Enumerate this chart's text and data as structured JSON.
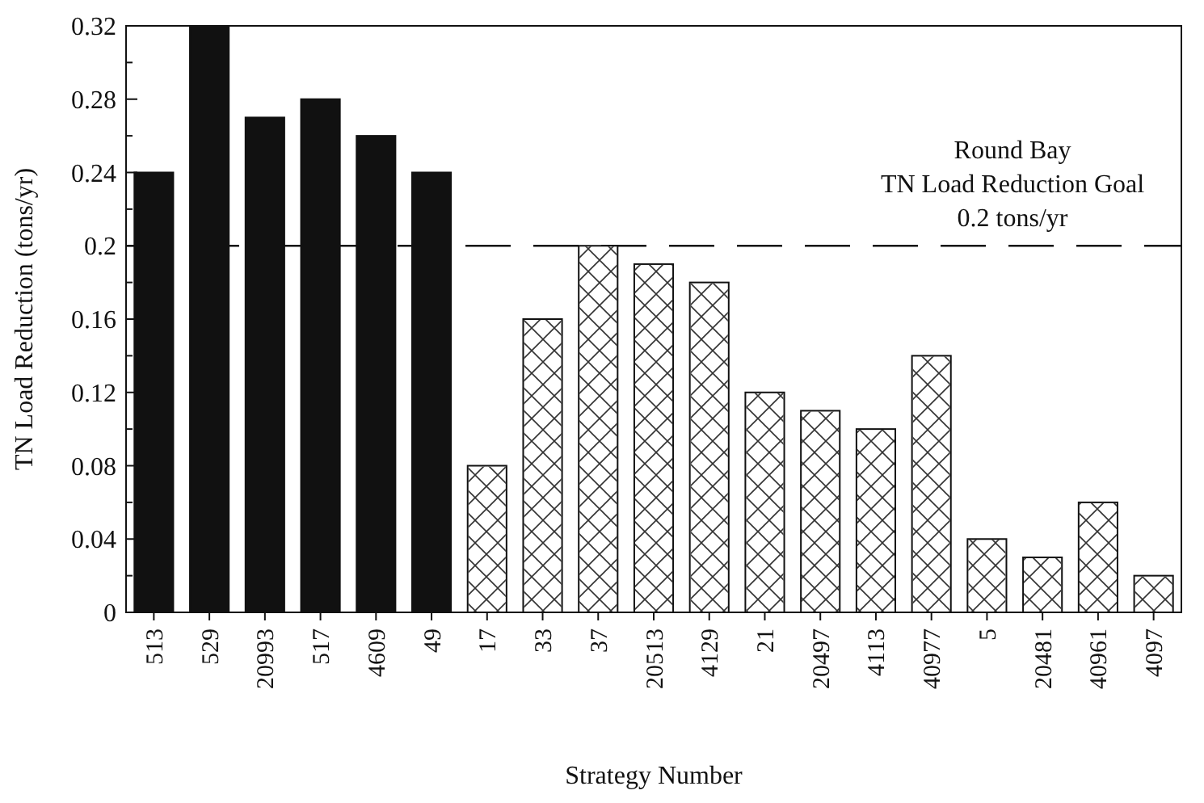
{
  "chart_data": {
    "type": "bar",
    "xlabel": "Strategy Number",
    "ylabel": "TN Load Reduction (tons/yr)",
    "categories": [
      "513",
      "529",
      "20993",
      "517",
      "4609",
      "49",
      "17",
      "33",
      "37",
      "20513",
      "4129",
      "21",
      "20497",
      "4113",
      "40977",
      "5",
      "20481",
      "40961",
      "4097"
    ],
    "stacked": true,
    "series": [
      {
        "color": "#111111",
        "values": [
          0.24,
          0.32,
          0.27,
          0.28,
          0.26,
          0.24,
          null,
          null,
          null,
          null,
          null,
          null,
          null,
          null,
          null,
          null,
          null,
          null,
          null
        ]
      },
      {
        "color": "#ffffff",
        "values": [
          null,
          null,
          null,
          null,
          null,
          null,
          0.08,
          0.16,
          0.2,
          0.19,
          0.18,
          0.12,
          0.11,
          0.1,
          0.14,
          0.04,
          0.03,
          0.06,
          0.02
        ]
      }
    ],
    "ylim": [
      0,
      0.32
    ],
    "yticks": [
      0,
      {
        "value": 0.02,
        "label": null
      },
      {
        "value": 0.04,
        "label": "0.04"
      },
      {
        "value": 0.06,
        "label": null
      },
      {
        "value": 0.08,
        "label": "0.08"
      },
      {
        "value": 0.1,
        "label": null
      },
      {
        "value": 0.12,
        "label": "0.12"
      },
      {
        "value": 0.14,
        "label": null
      },
      {
        "value": 0.16,
        "label": "0.16"
      },
      {
        "value": 0.18,
        "label": null
      },
      0.2,
      {
        "value": 0.22,
        "label": null
      },
      {
        "value": 0.24,
        "label": "0.24"
      },
      {
        "value": 0.26,
        "label": null
      },
      {
        "value": 0.28,
        "label": "0.28"
      },
      {
        "value": 0.3,
        "label": null
      },
      {
        "value": 0.32,
        "label": "0.32"
      }
    ],
    "grid": false,
    "ref_lines": [
      {
        "axis": "y",
        "value": 0.2,
        "label": "Round Bay\nTN Load Reduction Goal\n0.2 tons/yr",
        "line_style": "dashed",
        "color": "#111111"
      }
    ]
  }
}
